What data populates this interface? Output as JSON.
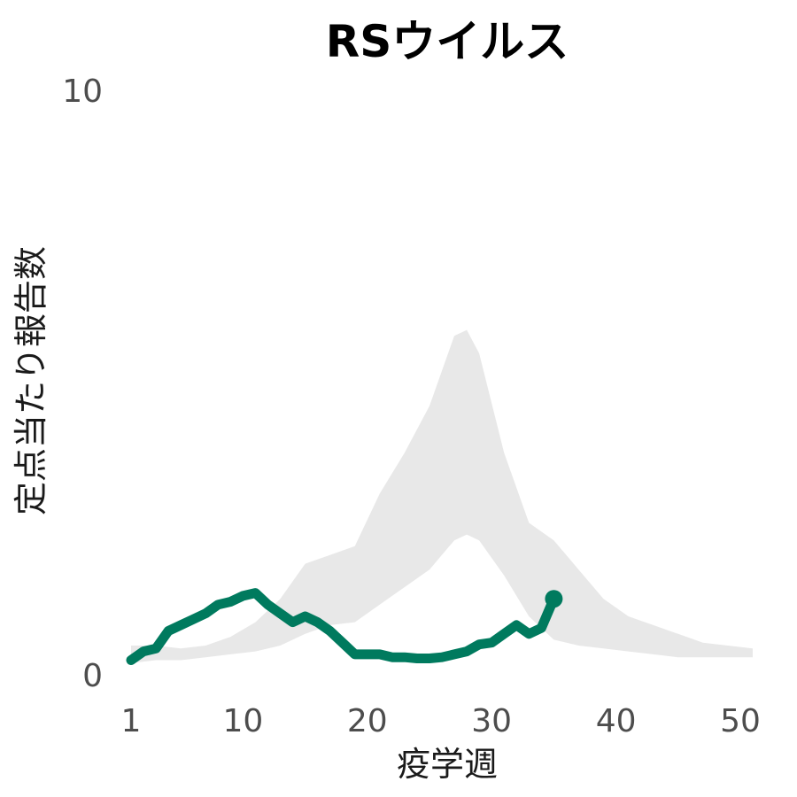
{
  "chart_data": {
    "type": "line",
    "title": "RSウイルス",
    "xlabel": "疫学週",
    "ylabel": "定点当たり報告数",
    "xlim": [
      1,
      51
    ],
    "ylim": [
      0,
      10
    ],
    "x_ticks": [
      "1",
      "10",
      "20",
      "30",
      "40",
      "50"
    ],
    "y_ticks": [
      "0",
      "10"
    ],
    "grid": false,
    "legend": "none",
    "colors": {
      "line": "#007a5e",
      "band": "#e8e8e8",
      "tick_text": "#4d4d4d"
    },
    "band": {
      "x": [
        1,
        3,
        5,
        7,
        9,
        11,
        13,
        15,
        17,
        19,
        21,
        23,
        25,
        27,
        28,
        29,
        31,
        33,
        35,
        37,
        39,
        41,
        43,
        45,
        47,
        49,
        51
      ],
      "lower": [
        0.2,
        0.25,
        0.25,
        0.3,
        0.35,
        0.4,
        0.5,
        0.7,
        0.85,
        0.9,
        1.2,
        1.5,
        1.8,
        2.3,
        2.4,
        2.3,
        1.7,
        1.0,
        0.6,
        0.5,
        0.45,
        0.4,
        0.35,
        0.3,
        0.3,
        0.3,
        0.3
      ],
      "upper": [
        0.5,
        0.5,
        0.45,
        0.5,
        0.65,
        0.9,
        1.3,
        1.9,
        2.05,
        2.2,
        3.1,
        3.8,
        4.6,
        5.8,
        5.9,
        5.5,
        3.8,
        2.6,
        2.3,
        1.8,
        1.3,
        1.0,
        0.85,
        0.7,
        0.55,
        0.5,
        0.45
      ]
    },
    "series": [
      {
        "x": [
          1,
          2,
          3,
          4,
          5,
          6,
          7,
          8,
          9,
          10,
          11,
          12,
          13,
          14,
          15,
          16,
          17,
          18,
          19,
          20,
          21,
          22,
          23,
          24,
          25,
          26,
          27,
          28,
          29,
          30,
          31,
          32,
          33,
          34,
          35
        ],
        "values": [
          0.25,
          0.4,
          0.45,
          0.75,
          0.85,
          0.95,
          1.05,
          1.2,
          1.25,
          1.35,
          1.4,
          1.2,
          1.05,
          0.9,
          1.0,
          0.9,
          0.75,
          0.55,
          0.35,
          0.35,
          0.35,
          0.3,
          0.3,
          0.28,
          0.28,
          0.3,
          0.35,
          0.4,
          0.52,
          0.55,
          0.7,
          0.85,
          0.7,
          0.8,
          1.3
        ]
      }
    ]
  }
}
